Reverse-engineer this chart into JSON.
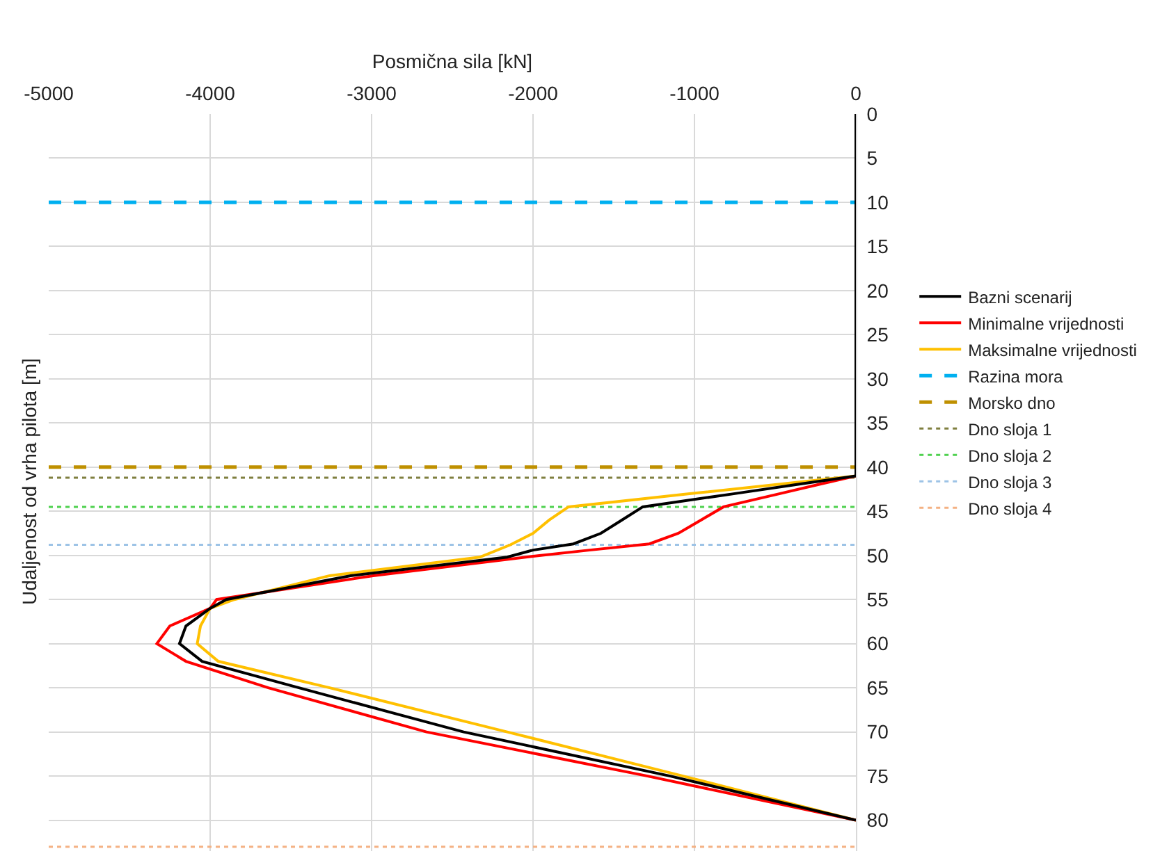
{
  "chart_data": {
    "type": "line",
    "orientation": "horizontal",
    "xlabel": "Posmična sila [kN]",
    "ylabel": "Udaljenost od vrha pilota [m]",
    "xlim": [
      -5000,
      0
    ],
    "xticks": [
      -5000,
      -4000,
      -3000,
      -2000,
      -1000,
      0
    ],
    "ylim": [
      83.5,
      0
    ],
    "yticks": [
      0,
      5,
      10,
      15,
      20,
      25,
      30,
      35,
      40,
      45,
      50,
      55,
      60,
      65,
      70,
      75,
      80
    ],
    "grid": true,
    "legend": "right",
    "line_style": "solid",
    "marker": "none",
    "series": [
      {
        "name": "Bazni scenarij",
        "color": "#000000",
        "x": [
          0,
          41,
          42,
          43,
          44.5,
          46,
          47.5,
          48.7,
          49.4,
          50.2,
          52.3,
          55,
          56,
          58,
          60,
          62,
          65,
          70,
          75,
          80
        ],
        "values": [
          0,
          0,
          -380,
          -750,
          -1320,
          -1450,
          -1580,
          -1750,
          -2000,
          -2160,
          -3130,
          -3900,
          -4000,
          -4150,
          -4190,
          -4050,
          -3450,
          -2430,
          -1150,
          0
        ]
      },
      {
        "name": "Minimalne vrijednosti",
        "color": "#ff0000",
        "x": [
          0,
          41,
          42,
          43,
          44.5,
          46,
          47.5,
          48.7,
          49.4,
          50.1,
          52.3,
          55,
          56,
          58,
          60,
          62,
          65,
          70,
          75,
          80
        ],
        "values": [
          0,
          0,
          -240,
          -470,
          -820,
          -960,
          -1100,
          -1280,
          -1650,
          -2000,
          -2990,
          -3960,
          -4000,
          -4250,
          -4330,
          -4150,
          -3640,
          -2660,
          -1290,
          0
        ]
      },
      {
        "name": "Maksimalne vrijednosti",
        "color": "#ffc000",
        "x": [
          0,
          40,
          41,
          42,
          43,
          44.5,
          46,
          47.5,
          48.8,
          50.2,
          52.3,
          55,
          56,
          58,
          60,
          62,
          65,
          70,
          75,
          80
        ],
        "values": [
          0,
          0,
          0,
          -510,
          -1020,
          -1780,
          -1900,
          -2000,
          -2140,
          -2330,
          -3260,
          -3850,
          -4000,
          -4060,
          -4080,
          -3950,
          -3260,
          -2160,
          -1070,
          0
        ]
      }
    ],
    "ref_lines": [
      {
        "axis": "y",
        "value": 10,
        "label": "Razina mora",
        "color": "#00b0f0",
        "line_style": "dashed"
      },
      {
        "axis": "y",
        "value": 40,
        "label": "Morsko dno",
        "color": "#bf9000",
        "line_style": "dashed"
      },
      {
        "axis": "y",
        "value": 41.2,
        "label": "Dno sloja 1",
        "color": "#7f7f3f",
        "line_style": "dotted"
      },
      {
        "axis": "y",
        "value": 44.5,
        "label": "Dno sloja 2",
        "color": "#4fd14f",
        "line_style": "dotted"
      },
      {
        "axis": "y",
        "value": 48.8,
        "label": "Dno sloja 3",
        "color": "#9dc3e6",
        "line_style": "dotted"
      },
      {
        "axis": "y",
        "value": 83,
        "label": "Dno sloja 4",
        "color": "#f4b183",
        "line_style": "dotted"
      }
    ]
  }
}
